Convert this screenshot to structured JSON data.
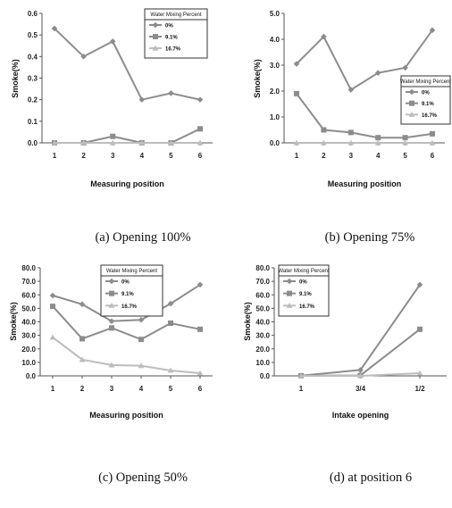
{
  "legend_title": "Water Mixing Percent",
  "series_colors": [
    "#8c8c8c",
    "#8c8c8c",
    "#bdbdbd"
  ],
  "chart_data": [
    {
      "type": "line",
      "caption": "(a) Opening 100%",
      "xlabel": "Measuring position",
      "ylabel": "Smoke(%)",
      "categories": [
        "1",
        "2",
        "3",
        "4",
        "5",
        "6"
      ],
      "ylim": [
        0,
        0.6
      ],
      "yticks": [
        "0.0",
        "0.1",
        "0.2",
        "0.3",
        "0.4",
        "0.5",
        "0.6"
      ],
      "legend_position": "top-right",
      "series": [
        {
          "name": "0%",
          "marker": "diamond",
          "values": [
            0.53,
            0.4,
            0.47,
            0.2,
            0.23,
            0.2
          ]
        },
        {
          "name": "9.1%",
          "marker": "square",
          "values": [
            0.0,
            0.0,
            0.03,
            0.0,
            0.0,
            0.065
          ]
        },
        {
          "name": "16.7%",
          "marker": "triangle",
          "values": [
            0.0,
            0.0,
            0.0,
            0.0,
            0.0,
            0.0
          ]
        }
      ]
    },
    {
      "type": "line",
      "caption": "(b) Opening 75%",
      "xlabel": "Measuring position",
      "ylabel": "Smoke(%)",
      "categories": [
        "1",
        "2",
        "3",
        "4",
        "5",
        "6"
      ],
      "ylim": [
        0,
        5.0
      ],
      "yticks": [
        "0.0",
        "1.0",
        "2.0",
        "3.0",
        "4.0",
        "5.0"
      ],
      "legend_position": "right",
      "series": [
        {
          "name": "0%",
          "marker": "diamond",
          "values": [
            3.05,
            4.1,
            2.05,
            2.7,
            2.9,
            4.35
          ]
        },
        {
          "name": "9.1%",
          "marker": "square",
          "values": [
            1.9,
            0.5,
            0.4,
            0.2,
            0.2,
            0.35
          ]
        },
        {
          "name": "16.7%",
          "marker": "triangle",
          "values": [
            0.0,
            0.0,
            0.0,
            0.0,
            0.0,
            0.0
          ]
        }
      ]
    },
    {
      "type": "line",
      "caption": "(c) Opening 50%",
      "xlabel": "Measuring position",
      "ylabel": "Smoke(%)",
      "categories": [
        "1",
        "2",
        "3",
        "4",
        "5",
        "6"
      ],
      "ylim": [
        0,
        80
      ],
      "yticks": [
        "0.0",
        "10.0",
        "20.0",
        "30.0",
        "40.0",
        "50.0",
        "60.0",
        "70.0",
        "80.0"
      ],
      "legend_position": "top-right",
      "series": [
        {
          "name": "0%",
          "marker": "diamond",
          "values": [
            59.5,
            53.0,
            40.5,
            41.5,
            53.5,
            67.5
          ]
        },
        {
          "name": "9.1%",
          "marker": "square",
          "values": [
            51.5,
            27.5,
            35.5,
            27.0,
            39.0,
            34.5
          ]
        },
        {
          "name": "16.7%",
          "marker": "triangle",
          "values": [
            28.5,
            12.0,
            8.0,
            7.5,
            4.0,
            2.0
          ]
        }
      ]
    },
    {
      "type": "line",
      "caption": "(d) at position 6",
      "xlabel": "Intake opening",
      "ylabel": "Smoke(%)",
      "categories": [
        "1",
        "3/4",
        "1/2"
      ],
      "ylim": [
        0,
        80
      ],
      "yticks": [
        "0.0",
        "10.0",
        "20.0",
        "30.0",
        "40.0",
        "50.0",
        "60.0",
        "70.0",
        "80.0"
      ],
      "legend_position": "top-left",
      "series": [
        {
          "name": "0%",
          "marker": "diamond",
          "values": [
            0.2,
            4.35,
            67.5
          ]
        },
        {
          "name": "9.1%",
          "marker": "square",
          "values": [
            0.07,
            0.35,
            34.5
          ]
        },
        {
          "name": "16.7%",
          "marker": "triangle",
          "values": [
            0.0,
            0.0,
            2.0
          ]
        }
      ]
    }
  ]
}
